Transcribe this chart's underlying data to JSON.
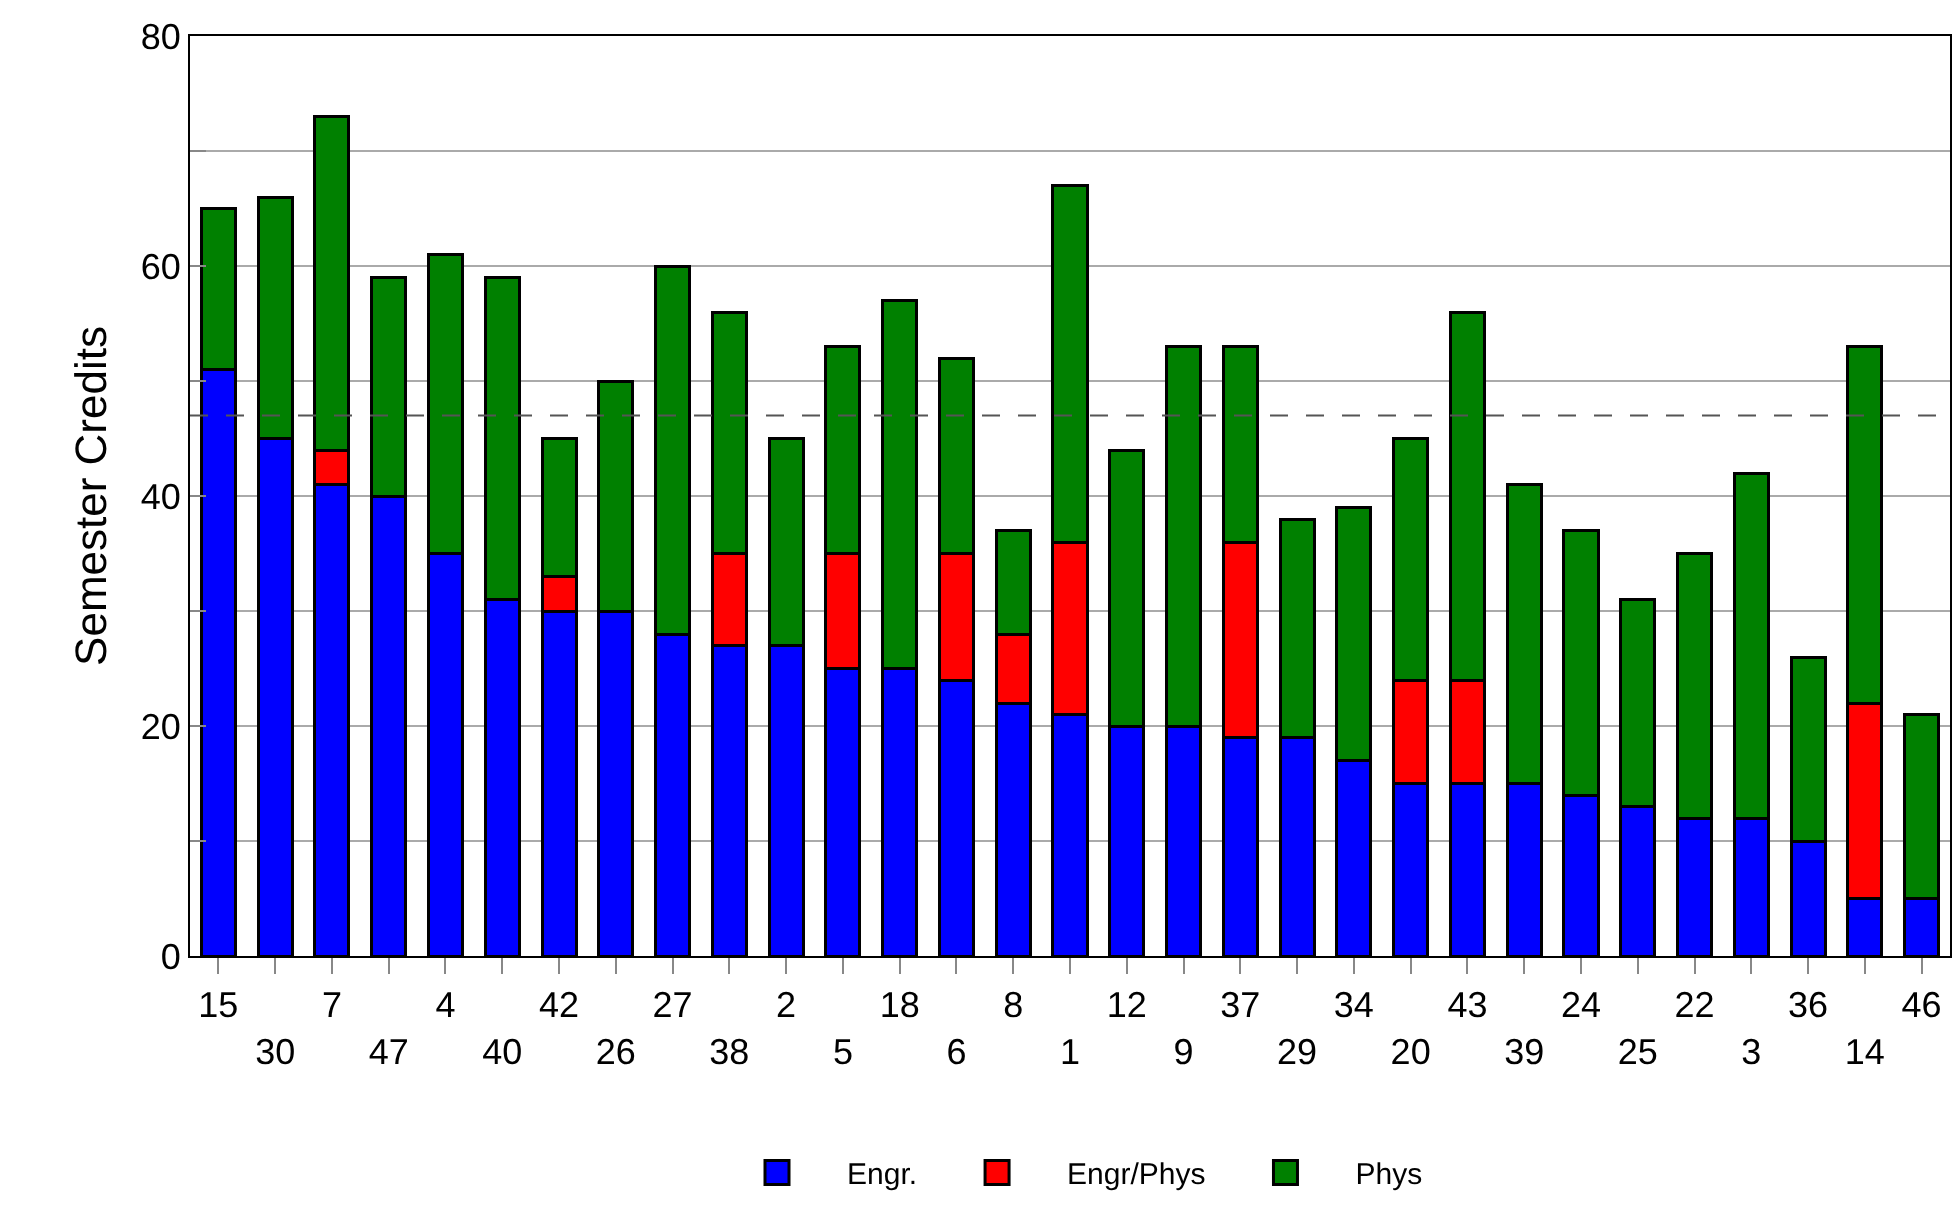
{
  "chart_data": {
    "type": "bar",
    "stacked": true,
    "ylabel": "Semester Credits",
    "categories": [
      "15",
      "30",
      "7",
      "47",
      "4",
      "40",
      "42",
      "26",
      "27",
      "38",
      "2",
      "5",
      "18",
      "6",
      "8",
      "1",
      "12",
      "9",
      "37",
      "29",
      "34",
      "20",
      "43",
      "39",
      "24",
      "25",
      "22",
      "3",
      "36",
      "14",
      "46"
    ],
    "series": [
      {
        "name": "Engr.",
        "color": "#0000ff",
        "values": [
          51,
          45,
          41,
          40,
          35,
          31,
          30,
          30,
          28,
          27,
          27,
          25,
          25,
          24,
          22,
          21,
          20,
          20,
          19,
          19,
          17,
          15,
          15,
          15,
          14,
          13,
          12,
          12,
          10,
          5,
          5
        ]
      },
      {
        "name": "Engr/Phys",
        "color": "#ff0000",
        "values": [
          0,
          0,
          3,
          0,
          0,
          0,
          3,
          0,
          0,
          8,
          0,
          10,
          0,
          11,
          6,
          15,
          0,
          0,
          17,
          0,
          0,
          9,
          9,
          0,
          0,
          0,
          0,
          0,
          0,
          17,
          0
        ]
      },
      {
        "name": "Phys",
        "color": "#008000",
        "values": [
          14,
          21,
          29,
          19,
          26,
          28,
          12,
          20,
          32,
          21,
          18,
          18,
          32,
          17,
          9,
          31,
          24,
          33,
          17,
          19,
          22,
          21,
          32,
          26,
          23,
          18,
          23,
          30,
          16,
          31,
          16
        ]
      }
    ],
    "ylim": [
      0,
      80
    ],
    "yticks": [
      0,
      {
        "value": 10,
        "label": null
      },
      20,
      {
        "value": 30,
        "label": null
      },
      40,
      {
        "value": 50,
        "label": null
      },
      60,
      {
        "value": 70,
        "label": null
      },
      80
    ],
    "grid": "y",
    "legend": "bottom",
    "ref_lines": [
      {
        "axis": "y",
        "value": 47,
        "label": null,
        "color": "#555555",
        "line_style": "dashed"
      }
    ]
  }
}
